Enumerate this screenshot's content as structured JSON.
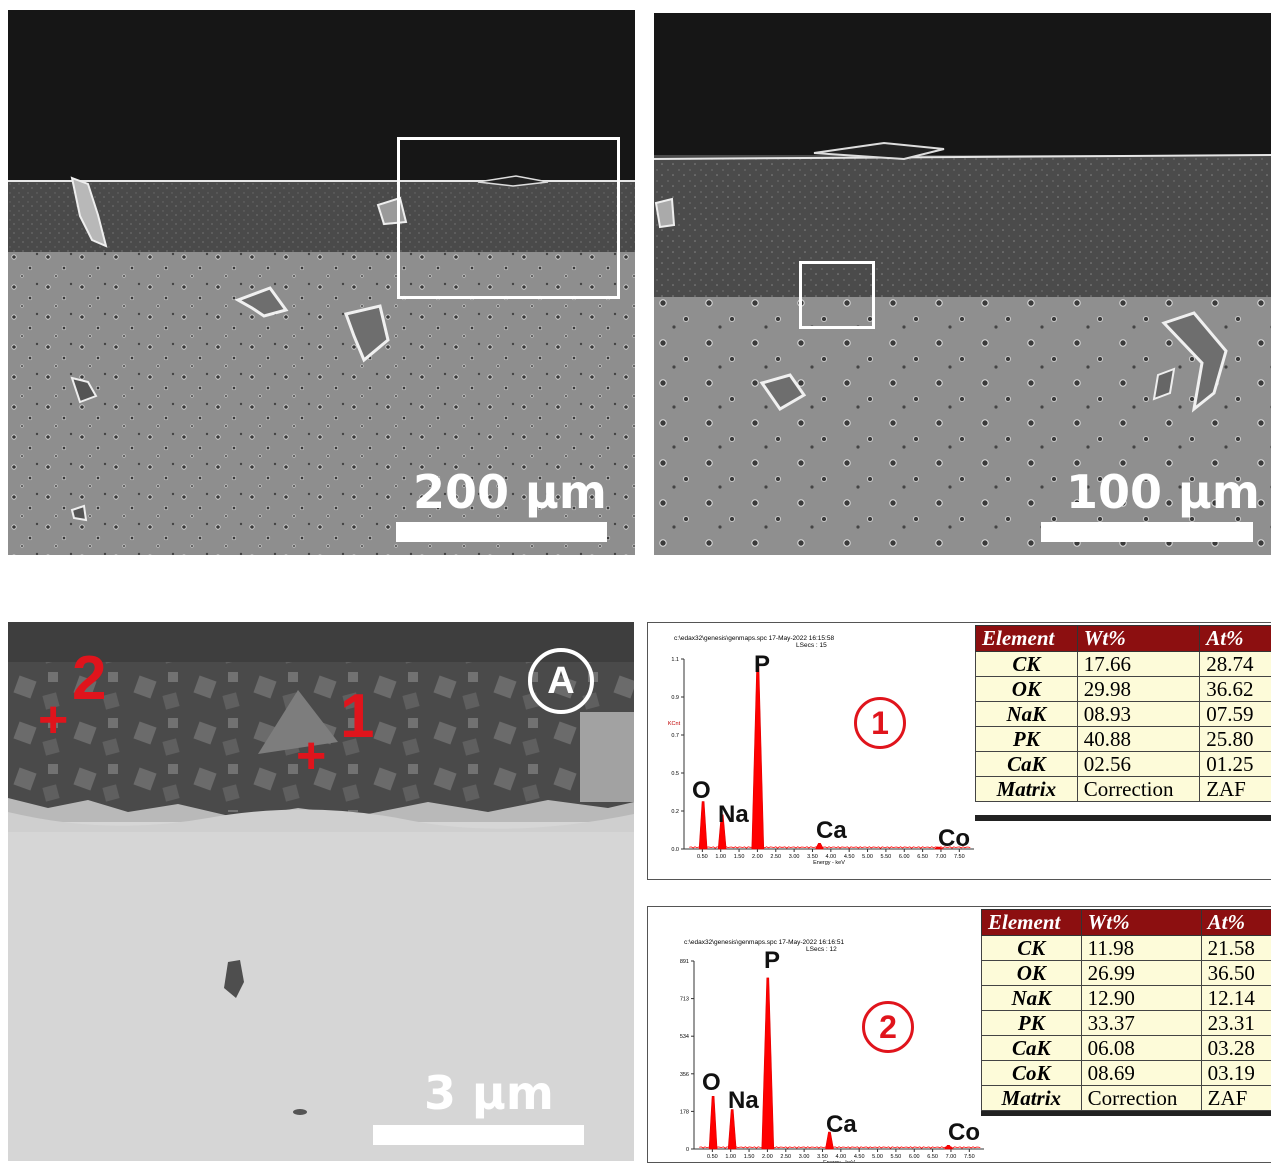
{
  "panels": {
    "top_left": {
      "scale_label": "200 μm"
    },
    "top_right": {
      "scale_label": "100 μm"
    },
    "bottom_left": {
      "scale_label": "3 μm",
      "badge": "A",
      "point1": "1",
      "point2": "2",
      "cross": "+"
    }
  },
  "spectra": [
    {
      "marker": "1",
      "header": "c:\\edax32\\genesis\\genmaps.spc  17-May-2022 16:15:58",
      "lsecs": "LSecs :  15",
      "y_ticks": [
        "1.1",
        "0.9",
        "0.7",
        "0.5",
        "0.2",
        "0.0"
      ],
      "y_unit": "KCnt",
      "x_ticks": [
        "0.50",
        "1.00",
        "1.50",
        "2.00",
        "2.50",
        "3.00",
        "3.50",
        "4.00",
        "4.50",
        "5.00",
        "5.50",
        "6.00",
        "6.50",
        "7.00",
        "7.50"
      ],
      "x_label": "Energy - keV",
      "peaks": [
        "O",
        "Na",
        "P",
        "Ca",
        "Co"
      ],
      "table": {
        "headers": [
          "Element",
          "Wt%",
          "At%"
        ],
        "rows": [
          [
            "CK",
            "17.66",
            "28.74"
          ],
          [
            "OK",
            "29.98",
            "36.62"
          ],
          [
            "NaK",
            "08.93",
            "07.59"
          ],
          [
            "PK",
            "40.88",
            "25.80"
          ],
          [
            "CaK",
            "02.56",
            "01.25"
          ],
          [
            "Matrix",
            "Correction",
            "ZAF"
          ]
        ]
      }
    },
    {
      "marker": "2",
      "header": "c:\\edax32\\genesis\\genmaps.spc  17-May-2022 16:16:51",
      "lsecs": "LSecs :  12",
      "y_ticks": [
        "891",
        "713",
        "534",
        "356",
        "178",
        "0"
      ],
      "y_unit": "",
      "x_ticks": [
        "0.50",
        "1.00",
        "1.50",
        "2.00",
        "2.50",
        "3.00",
        "3.50",
        "4.00",
        "4.50",
        "5.00",
        "5.50",
        "6.00",
        "6.50",
        "7.00",
        "7.50"
      ],
      "x_label": "Energy - keV",
      "peaks": [
        "O",
        "Na",
        "P",
        "Ca",
        "Co"
      ],
      "table": {
        "headers": [
          "Element",
          "Wt%",
          "At%"
        ],
        "rows": [
          [
            "CK",
            "11.98",
            "21.58"
          ],
          [
            "OK",
            "26.99",
            "36.50"
          ],
          [
            "NaK",
            "12.90",
            "12.14"
          ],
          [
            "PK",
            "33.37",
            "23.31"
          ],
          [
            "CaK",
            "06.08",
            "03.28"
          ],
          [
            "CoK",
            "08.69",
            "03.19"
          ],
          [
            "Matrix",
            "Correction",
            "ZAF"
          ]
        ]
      }
    }
  ],
  "colors": {
    "marker_red": "#e0141c",
    "table_header": "#8c0f10",
    "table_body": "#fdfbd9",
    "spectrum_red": "#ff0000"
  }
}
